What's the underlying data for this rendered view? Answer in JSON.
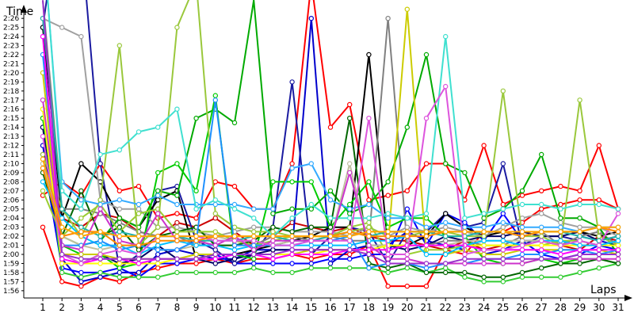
{
  "chart_data": {
    "type": "line",
    "xlabel": "Laps",
    "ylabel": "Time",
    "categories": [
      "1",
      "2",
      "3",
      "4",
      "5",
      "6",
      "7",
      "8",
      "9",
      "10",
      "11",
      "12",
      "13",
      "14",
      "15",
      "16",
      "17",
      "18",
      "19",
      "20",
      "21",
      "22",
      "23",
      "24",
      "25",
      "26",
      "27",
      "28",
      "29",
      "30",
      "31"
    ],
    "yticks": [
      "1:56",
      "1:57",
      "1:58",
      "1:59",
      "2:00",
      "2:01",
      "2:02",
      "2:03",
      "2:04",
      "2:05",
      "2:06",
      "2:07",
      "2:08",
      "2:09",
      "2:10",
      "2:11",
      "2:12",
      "2:13",
      "2:14",
      "2:15",
      "2:16",
      "2:17",
      "2:18",
      "2:19",
      "2:20",
      "2:21",
      "2:22",
      "2:23",
      "2:24",
      "2:25",
      "2:26"
    ],
    "ylim_seconds": [
      115.2,
      147.5
    ],
    "grid": false,
    "series": [
      {
        "color": "#ff0000",
        "values": [
          123,
          117,
          116.5,
          117.5,
          117,
          118,
          118.5,
          119,
          119,
          119.5,
          119,
          119.5,
          119.5,
          120,
          119.5,
          120,
          120,
          121,
          116.5,
          116.5,
          116.5,
          120.5,
          120,
          122.5,
          122.5,
          123.5,
          125,
          125.5,
          126,
          126,
          125
        ]
      },
      {
        "color": "#ff0000",
        "values": [
          126.5,
          128,
          126.5,
          130,
          127,
          127.5,
          124,
          124.5,
          124,
          128,
          127.5,
          125,
          125,
          130,
          150,
          134,
          136.5,
          126,
          126.5,
          127,
          130,
          130,
          126,
          132,
          125.5,
          126.5,
          127,
          127.5,
          127,
          132,
          125
        ]
      },
      {
        "color": "#cc0000",
        "values": [
          134,
          124,
          123,
          124.5,
          124,
          122.5,
          122,
          123.5,
          123,
          124,
          122.5,
          121,
          122,
          123.5,
          123,
          122.5,
          123,
          122,
          121.5,
          121.5,
          121,
          120.5,
          121.5,
          120.5,
          121,
          121,
          121.5,
          121,
          120.5,
          122,
          121.5
        ]
      },
      {
        "color": "#0000cc",
        "values": [
          132,
          119.5,
          117,
          117.5,
          118,
          118,
          120,
          120.5,
          120,
          119.5,
          119.5,
          120.5,
          120.5,
          120.5,
          146,
          119,
          120.5,
          121,
          121,
          122.5,
          121.5,
          121,
          120.5,
          120,
          120.5,
          121.5,
          121.5,
          121,
          122,
          121.5,
          121
        ]
      },
      {
        "color": "#0000ff",
        "values": [
          131,
          118.5,
          118,
          118,
          118.5,
          117.5,
          119,
          119,
          119.5,
          120,
          119,
          119,
          119,
          119,
          119,
          119.5,
          119.5,
          120,
          120,
          125,
          121,
          124.5,
          123.5,
          121.5,
          124.5,
          121.5,
          120,
          119.5,
          120,
          121,
          120.5
        ]
      },
      {
        "color": "#1a1aa0",
        "values": [
          145,
          160,
          155,
          130,
          118.5,
          120,
          127,
          127.5,
          121.5,
          120.5,
          119,
          120,
          123,
          139,
          120,
          122,
          123,
          122.5,
          119,
          122.5,
          122.5,
          124.5,
          123,
          123.5,
          130,
          121,
          122,
          122,
          121.5,
          121,
          121.5
        ]
      },
      {
        "color": "#000066",
        "values": [
          134,
          119,
          119,
          120,
          119,
          119.5,
          121,
          119.5,
          119.5,
          119,
          119.5,
          120,
          120.5,
          120.5,
          120.5,
          120.5,
          120.5,
          120.5,
          121,
          120.5,
          121,
          122,
          121.5,
          122,
          122,
          122.5,
          122,
          122,
          122.5,
          121.5,
          122
        ]
      },
      {
        "color": "#000000",
        "values": [
          145,
          124,
          130,
          128,
          124,
          123,
          126,
          127,
          119.5,
          120,
          120,
          120.5,
          121,
          121.5,
          122,
          123,
          123,
          142,
          121,
          121,
          122,
          124.5,
          123,
          122,
          122.5,
          122,
          122.5,
          122.5,
          122.5,
          122,
          122.5
        ]
      },
      {
        "color": "#808080",
        "values": [
          148,
          125,
          125,
          124.5,
          123.5,
          122.5,
          122,
          122,
          121,
          121,
          121,
          121,
          122,
          122,
          121.5,
          122,
          121.5,
          121.5,
          146,
          121,
          121,
          121.5,
          121.5,
          121,
          121,
          122,
          122.5,
          121,
          122,
          122.5,
          121
        ]
      },
      {
        "color": "#a0a0a0",
        "values": [
          146,
          145,
          144,
          126,
          125,
          125,
          123,
          123,
          122.5,
          122,
          122.5,
          123,
          123,
          122.5,
          122.5,
          122.5,
          122,
          123,
          122,
          123,
          122.5,
          123,
          122.5,
          122,
          123,
          124,
          124.5,
          123.5,
          123,
          123,
          122
        ]
      },
      {
        "color": "#00aa00",
        "values": [
          135,
          122,
          121,
          121.5,
          124,
          123,
          127,
          126.5,
          135,
          136,
          134.5,
          148,
          124.5,
          125,
          125,
          127,
          124.5,
          125.5,
          128,
          134,
          142,
          130,
          129,
          124,
          125,
          127,
          131,
          124,
          124,
          123,
          120
        ]
      },
      {
        "color": "#00cc00",
        "values": [
          135,
          121,
          120,
          120,
          118.5,
          119,
          129,
          130,
          127,
          137.5,
          120,
          119.5,
          128,
          128,
          128,
          123,
          125.5,
          128,
          123,
          124,
          124,
          122,
          122,
          119.5,
          119,
          119,
          119.5,
          119,
          119.5,
          119.5,
          119
        ]
      },
      {
        "color": "#33cc33",
        "values": [
          136,
          118,
          117.5,
          118,
          117.5,
          117.5,
          117.5,
          118,
          118,
          118,
          118,
          118.5,
          118,
          118,
          118.5,
          118.5,
          118.5,
          118.5,
          118,
          118.5,
          118,
          118.5,
          117.5,
          117,
          117,
          117.5,
          117.5,
          117.5,
          118,
          118.5,
          119
        ]
      },
      {
        "color": "#006600",
        "values": [
          129,
          122,
          127,
          122,
          123,
          120.5,
          122,
          122.5,
          123,
          121,
          121,
          121.5,
          123,
          122.5,
          123,
          123,
          135,
          119,
          118.5,
          119,
          118,
          118,
          118,
          117.5,
          117.5,
          118,
          118.5,
          119,
          119,
          119.5,
          119
        ]
      },
      {
        "color": "#9acd32",
        "values": [
          127,
          122,
          124,
          125.5,
          122.5,
          124.5,
          125,
          122.5,
          122.5,
          122.5,
          121.5,
          121,
          121.5,
          122,
          122,
          122,
          123,
          123.5,
          120,
          120,
          120.5,
          120.5,
          121,
          121,
          121,
          121,
          121,
          121.5,
          121.5,
          121,
          121.5
        ]
      },
      {
        "color": "#9ac83c",
        "values": [
          131,
          125,
          122,
          126,
          143,
          121,
          123,
          145,
          150,
          124.5,
          123,
          122.5,
          122.5,
          122,
          122,
          122,
          122.5,
          123,
          122,
          122,
          122.5,
          122.5,
          122,
          122,
          138,
          122,
          122,
          121,
          137,
          122,
          121
        ]
      },
      {
        "color": "#c0c0a0",
        "values": [
          130,
          122,
          121,
          120.5,
          121,
          121,
          120.5,
          120.5,
          121,
          122,
          121.5,
          121.5,
          121,
          121.5,
          121.5,
          121.5,
          130,
          121,
          121,
          121,
          121,
          121,
          121.5,
          121.5,
          121.5,
          121.5,
          121.5,
          121,
          121.5,
          121,
          121.5
        ]
      },
      {
        "color": "#cccc00",
        "values": [
          140,
          120,
          120,
          120,
          119.5,
          119.5,
          119.5,
          119.5,
          120,
          120,
          120,
          120,
          120,
          120,
          120.5,
          120.5,
          120.5,
          120.5,
          121,
          147,
          120,
          120,
          120.5,
          120,
          120,
          120.5,
          120.5,
          120.5,
          120.5,
          120.5,
          120
        ]
      },
      {
        "color": "#ffff00",
        "values": [
          136,
          119,
          119,
          119,
          119,
          119,
          119,
          119.5,
          119.5,
          120,
          120,
          120,
          120,
          120,
          120,
          120.5,
          120.5,
          120.5,
          121,
          121,
          121,
          121,
          121,
          121,
          121,
          121,
          121,
          121,
          121,
          121,
          121
        ]
      },
      {
        "color": "#00bfff",
        "values": [
          128,
          124,
          122,
          121,
          121,
          120,
          121,
          121.5,
          121,
          121,
          120.5,
          121,
          121,
          121,
          121,
          121,
          121,
          121.5,
          121.5,
          122,
          120,
          120,
          121,
          121.5,
          121.5,
          121,
          121.5,
          121.5,
          121,
          121,
          121.5
        ]
      },
      {
        "color": "#1e90ff",
        "values": [
          142,
          121,
          121,
          121.5,
          120.5,
          121,
          120.5,
          120.5,
          121.5,
          137,
          121,
          121,
          121,
          121,
          121.5,
          121.5,
          122,
          118.5,
          119,
          119,
          118.5,
          119,
          119,
          119.5,
          119.5,
          120,
          120,
          120.5,
          120.5,
          120,
          120.5
        ]
      },
      {
        "color": "#33aaff",
        "values": [
          155,
          128,
          126,
          125.5,
          126,
          125.5,
          126.5,
          125.5,
          125.5,
          125.5,
          125.5,
          125,
          125,
          129.5,
          130,
          126,
          125,
          125.5,
          124,
          124,
          123,
          123.5,
          123,
          123,
          123.5,
          123,
          123,
          123,
          122.5,
          123,
          123
        ]
      },
      {
        "color": "#40e0d0",
        "values": [
          155.5,
          127,
          125,
          131,
          131.5,
          133.5,
          134,
          136,
          125,
          126,
          125,
          124,
          122,
          124,
          125.5,
          124,
          124,
          124,
          124.5,
          124,
          124.5,
          144,
          124,
          124.5,
          125,
          125.5,
          125.5,
          125,
          125.5,
          125.5,
          125
        ]
      },
      {
        "color": "#20b2aa",
        "values": [
          146,
          125,
          123,
          122,
          122.5,
          122,
          122,
          122,
          121.5,
          121.5,
          121.5,
          122,
          122,
          121.5,
          121.5,
          122,
          122.5,
          122,
          122.5,
          122.5,
          122.5,
          122,
          122,
          122.5,
          122.5,
          122,
          122.5,
          122.5,
          122,
          121.5,
          122
        ]
      },
      {
        "color": "#ff00ff",
        "values": [
          144,
          119.5,
          119,
          119.5,
          119.5,
          119,
          119.5,
          119.5,
          119.5,
          119.5,
          120,
          120,
          119.5,
          120,
          120,
          120,
          120.5,
          120.5,
          120.5,
          121,
          121,
          121,
          121,
          120.5,
          120.5,
          120.5,
          120.5,
          120,
          120.5,
          120.5,
          120.5
        ]
      },
      {
        "color": "#cc33cc",
        "values": [
          137,
          121,
          120.5,
          125,
          121.5,
          121,
          124.5,
          121.5,
          121.5,
          121,
          122,
          120.5,
          121.5,
          121.5,
          121.5,
          121.5,
          129,
          121,
          119.5,
          119.5,
          119,
          119,
          119,
          119,
          119,
          119,
          119.5,
          119.5,
          119.5,
          119.5,
          119.5
        ]
      },
      {
        "color": "#dd55dd",
        "values": [
          133,
          120,
          119,
          120,
          120.5,
          120,
          122,
          122,
          122,
          121.5,
          121.5,
          121.5,
          121,
          121,
          121.5,
          121.5,
          121.5,
          135,
          120,
          120,
          135,
          138.5,
          120,
          120.5,
          120.5,
          121,
          121.5,
          121,
          121.5,
          121,
          124.5
        ]
      },
      {
        "color": "#9932cc",
        "values": [
          148,
          120,
          119.5,
          119.5,
          119.5,
          119.5,
          119.5,
          119.5,
          119.5,
          120,
          120,
          120,
          120,
          120.5,
          120.5,
          120.5,
          120.5,
          120,
          119,
          119,
          119,
          119,
          119.5,
          119.5,
          119.5,
          119.5,
          119.5,
          119.5,
          120,
          120,
          120
        ]
      },
      {
        "color": "#ff8c00",
        "values": [
          129.5,
          122,
          122.5,
          122.5,
          121,
          121,
          121.5,
          121.5,
          121.5,
          122,
          122,
          122,
          122,
          122,
          122,
          122,
          122.5,
          122,
          122,
          122,
          122,
          122.5,
          122.5,
          122.5,
          122.5,
          122,
          122.5,
          122.5,
          122.5,
          123,
          122.5
        ]
      },
      {
        "color": "#ffa500",
        "values": [
          130.5,
          123,
          122,
          122.5,
          122,
          122,
          122,
          122,
          122,
          122,
          122,
          122,
          122,
          122,
          122,
          122,
          122,
          122.5,
          122.5,
          122.5,
          122.5,
          122.5,
          122.5,
          122.5,
          122.5,
          122.5,
          122.5,
          122.5,
          122.5,
          123,
          123
        ]
      }
    ]
  }
}
